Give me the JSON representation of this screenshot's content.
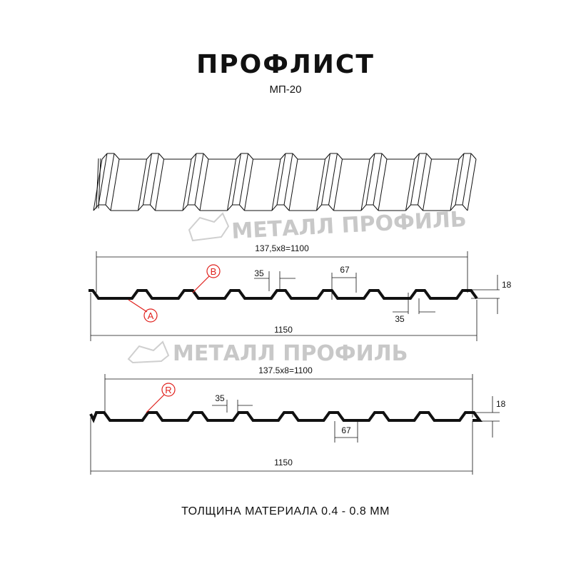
{
  "header": {
    "title": "ПРОФЛИСТ",
    "subtitle": "МП-20"
  },
  "watermark": "МЕТАЛЛ ПРОФИЛЬ",
  "profile_a": {
    "pitch_label": "137,5x8=1100",
    "width_label": "1150",
    "rib_top_label": "35",
    "rib_bottom_label": "35",
    "rib_pitch_label": "67",
    "height_label": "18",
    "callout_a": "A",
    "callout_b": "B"
  },
  "profile_r": {
    "pitch_label": "137.5x8=1100",
    "width_label": "1150",
    "rib_top_label": "35",
    "rib_pitch_label": "67",
    "height_label": "18",
    "callout_r": "R"
  },
  "footer": {
    "thickness": "ТОЛЩИНА МАТЕРИАЛА 0.4 - 0.8 ММ"
  },
  "colors": {
    "line": "#111111",
    "callout": "#e0201c",
    "watermark": "#c8c8c8"
  }
}
